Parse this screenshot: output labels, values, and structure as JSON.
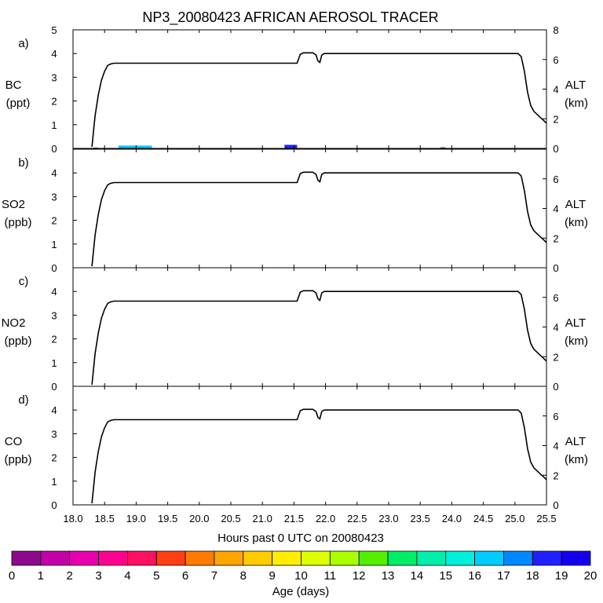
{
  "chart_data": {
    "type": "line",
    "title": "NP3_20080423 AFRICAN AEROSOL TRACER",
    "xlabel": "Hours past 0 UTC on 20080423",
    "xlim": [
      18.0,
      25.5
    ],
    "x_ticks": [
      "18.0",
      "18.5",
      "19.0",
      "19.5",
      "20.0",
      "20.5",
      "21.0",
      "21.5",
      "22.0",
      "22.5",
      "23.0",
      "23.5",
      "24.0",
      "24.5",
      "25.0",
      "25.5"
    ],
    "grid": false,
    "altitude_track": {
      "name": "ALT (km)",
      "x": [
        18.3,
        18.35,
        18.4,
        18.45,
        18.5,
        18.55,
        18.6,
        18.65,
        18.7,
        21.55,
        21.6,
        21.65,
        21.8,
        21.85,
        21.88,
        21.91,
        21.94,
        21.98,
        22.0,
        25.05,
        25.1,
        25.15,
        25.2,
        25.25,
        25.3,
        25.35,
        25.4,
        25.45,
        25.5
      ],
      "y": [
        0.1,
        2.2,
        3.6,
        4.6,
        5.2,
        5.6,
        5.7,
        5.75,
        5.75,
        5.75,
        6.35,
        6.45,
        6.45,
        6.3,
        5.9,
        5.8,
        6.3,
        6.4,
        6.4,
        6.4,
        6.2,
        5.2,
        3.8,
        2.9,
        2.5,
        2.3,
        2.1,
        1.9,
        1.7
      ]
    },
    "panels": [
      {
        "letter": "a)",
        "species": "BC",
        "units": "(ppt)",
        "ylim": [
          0,
          5
        ],
        "left_ticks": [
          "0",
          "1",
          "2",
          "3",
          "4",
          "5"
        ],
        "right_ticks": [
          "0",
          "2",
          "4",
          "6",
          "8"
        ],
        "right_label": "ALT",
        "right_units": "(km)",
        "ylim_right": [
          0,
          8
        ],
        "tracer_bars": [
          {
            "x_start": 18.32,
            "x_end": 18.4,
            "value": 0.03,
            "age_days": 18
          },
          {
            "x_start": 18.72,
            "x_end": 19.25,
            "value": 0.12,
            "age_days": 16
          },
          {
            "x_start": 21.35,
            "x_end": 21.55,
            "value": 0.15,
            "age_days": 18
          },
          {
            "x_start": 23.82,
            "x_end": 23.9,
            "value": 0.05,
            "age_days": 17
          }
        ]
      },
      {
        "letter": "b)",
        "species": "SO2",
        "units": "(ppb)",
        "ylim": [
          0,
          5
        ],
        "left_ticks": [
          "0",
          "1",
          "2",
          "3",
          "4"
        ],
        "right_ticks": [
          "0",
          "2",
          "4",
          "6"
        ],
        "right_label": "ALT",
        "right_units": "(km)",
        "ylim_right": [
          0,
          8
        ],
        "tracer_bars": []
      },
      {
        "letter": "c)",
        "species": "NO2",
        "units": "(ppb)",
        "ylim": [
          0,
          5
        ],
        "left_ticks": [
          "0",
          "1",
          "2",
          "3",
          "4"
        ],
        "right_ticks": [
          "0",
          "2",
          "4",
          "6"
        ],
        "right_label": "ALT",
        "right_units": "(km)",
        "ylim_right": [
          0,
          8
        ],
        "tracer_bars": []
      },
      {
        "letter": "d)",
        "species": "CO",
        "units": "(ppb)",
        "ylim": [
          0,
          5
        ],
        "left_ticks": [
          "0",
          "1",
          "2",
          "3",
          "4"
        ],
        "right_ticks": [
          "0",
          "2",
          "4",
          "6"
        ],
        "right_label": "ALT",
        "right_units": "(km)",
        "ylim_right": [
          0,
          8
        ],
        "tracer_bars": []
      }
    ],
    "colorbar": {
      "label": "Age (days)",
      "ticks": [
        "0",
        "1",
        "2",
        "3",
        "4",
        "5",
        "6",
        "7",
        "8",
        "9",
        "10",
        "11",
        "12",
        "13",
        "14",
        "15",
        "16",
        "17",
        "18",
        "19",
        "20"
      ],
      "colors": [
        "#8B0A8B",
        "#C400A8",
        "#E800B0",
        "#FF0090",
        "#FF1060",
        "#FF4010",
        "#FF7A00",
        "#FFA500",
        "#FFCC00",
        "#FFEE00",
        "#DDFF00",
        "#AAFF00",
        "#55EE00",
        "#00EE66",
        "#00F0AA",
        "#00F0DD",
        "#00CCFF",
        "#0088FF",
        "#2020FF",
        "#1500EE",
        "#7A10FF"
      ]
    }
  }
}
